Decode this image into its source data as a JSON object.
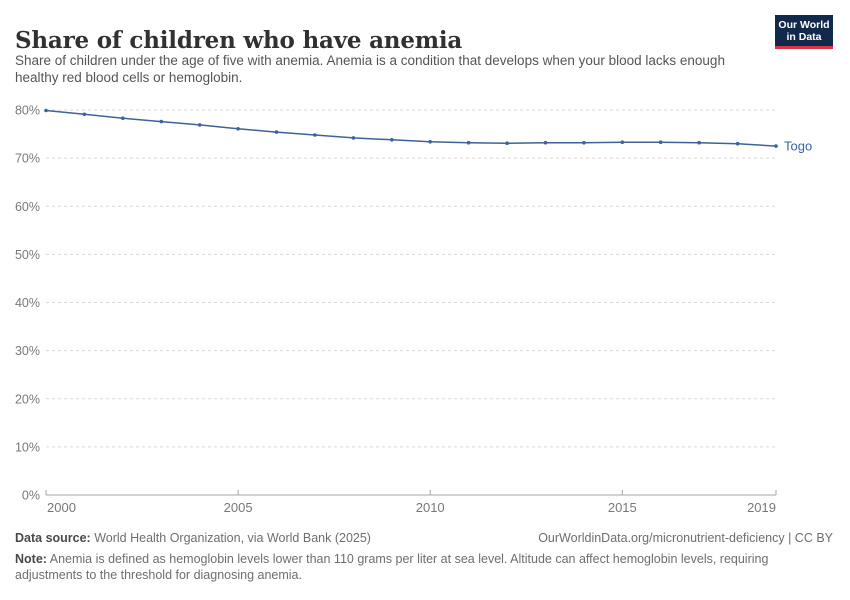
{
  "header": {
    "title": "Share of children who have anemia",
    "subtitle": "Share of children under the age of five with anemia. Anemia is a condition that develops when your blood lacks enough healthy red blood cells or hemoglobin.",
    "logo": {
      "line1": "Our World",
      "line2": "in Data",
      "bg_color": "#12294b",
      "accent_color": "#d8354a"
    }
  },
  "chart_data": {
    "type": "line",
    "title": "Share of children who have anemia",
    "xlabel": "",
    "ylabel": "",
    "x": [
      2000,
      2001,
      2002,
      2003,
      2004,
      2005,
      2006,
      2007,
      2008,
      2009,
      2010,
      2011,
      2012,
      2013,
      2014,
      2015,
      2016,
      2017,
      2018,
      2019
    ],
    "series": [
      {
        "name": "Togo",
        "color": "#3d6399",
        "values": [
          79.9,
          79.1,
          78.3,
          77.6,
          76.9,
          76.1,
          75.4,
          74.8,
          74.2,
          73.8,
          73.4,
          73.2,
          73.1,
          73.2,
          73.2,
          73.3,
          73.3,
          73.2,
          73.0,
          72.5
        ]
      }
    ],
    "ylim": [
      0,
      80
    ],
    "yticks": [
      0,
      10,
      20,
      30,
      40,
      50,
      60,
      70,
      80
    ],
    "ytick_suffix": "%",
    "xticks": [
      2000,
      2005,
      2010,
      2015,
      2019
    ],
    "grid": "horizontal-dashed",
    "legend_position": "end-of-line-label",
    "colors": {
      "gridline": "#dadada",
      "axis": "#a5a5a5",
      "tick_label": "#787878"
    }
  },
  "footer": {
    "datasource_label": "Data source:",
    "datasource_text": " World Health Organization, via World Bank (2025)",
    "link_text": "OurWorldinData.org/micronutrient-deficiency | CC BY",
    "note_label": "Note:",
    "note_text": " Anemia is defined as hemoglobin levels lower than 110 grams per liter at sea level. Altitude can affect hemoglobin levels, requiring adjustments to the threshold for diagnosing anemia."
  }
}
